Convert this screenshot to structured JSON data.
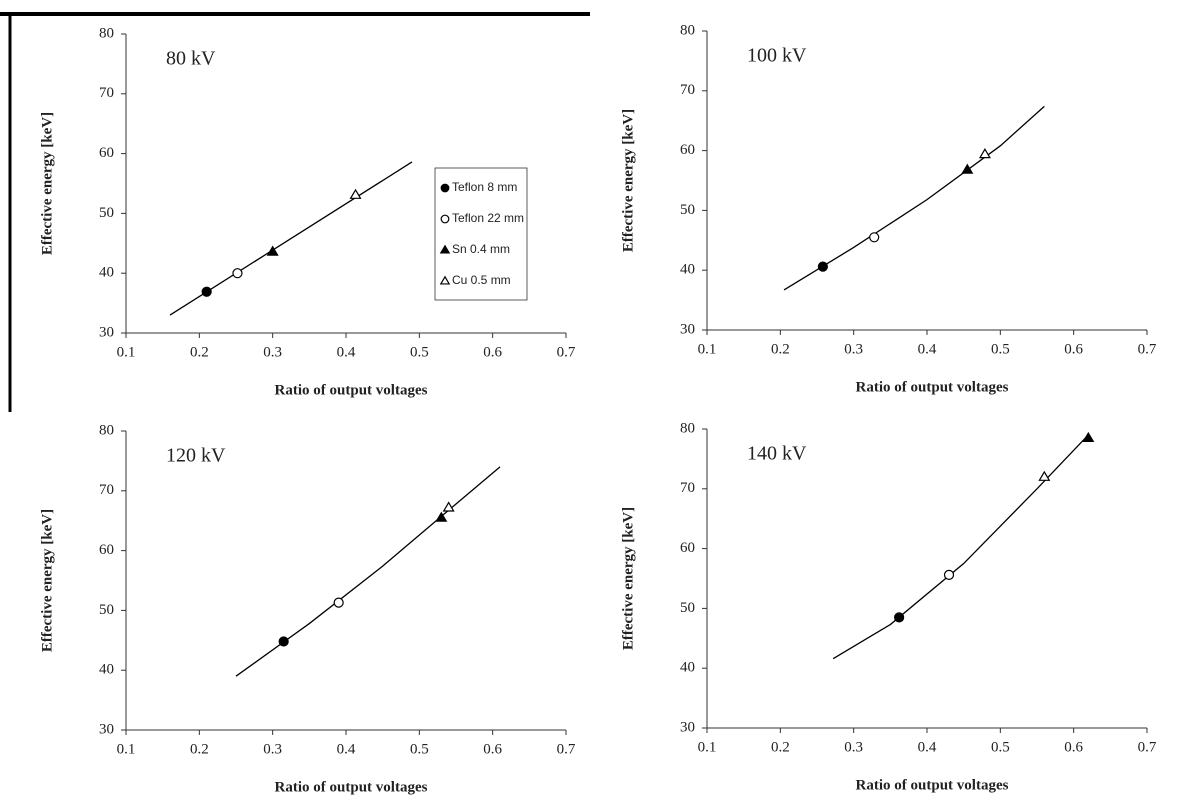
{
  "chart_data": [
    {
      "type": "scatter",
      "annotation": "80 kV",
      "x_label": "Ratio of output voltages",
      "y_label": "Effective energy [keV]",
      "xlim": [
        0.1,
        0.7
      ],
      "xticks": [
        0.1,
        0.2,
        0.3,
        0.4,
        0.5,
        0.6,
        0.7
      ],
      "ylim": [
        30,
        80
      ],
      "yticks": [
        30,
        40,
        50,
        60,
        70,
        80
      ],
      "legend": "right",
      "series": [
        {
          "name": "Teflon 8 mm",
          "marker": "circle",
          "filled": true,
          "color": "#000000",
          "x": [
            0.21
          ],
          "values": [
            36.9
          ]
        },
        {
          "name": "Teflon 22 mm",
          "marker": "circle",
          "filled": false,
          "color": "#000000",
          "x": [
            0.252
          ],
          "values": [
            40
          ]
        },
        {
          "name": "Sn 0.4 mm",
          "marker": "triangle",
          "filled": true,
          "color": "#000000",
          "x": [
            0.3
          ],
          "values": [
            43.6
          ]
        },
        {
          "name": "Cu 0.5 mm",
          "marker": "triangle",
          "filled": false,
          "color": "#000000",
          "x": [
            0.413
          ],
          "values": [
            53.1
          ]
        }
      ],
      "fit": {
        "color": "#000000",
        "x": [
          0.16,
          0.49
        ],
        "values": [
          33,
          58.6
        ]
      }
    },
    {
      "type": "scatter",
      "annotation": "100 kV",
      "x_label": "Ratio of output voltages",
      "y_label": "Effective energy [keV]",
      "xlim": [
        0.1,
        0.7
      ],
      "xticks": [
        0.1,
        0.2,
        0.3,
        0.4,
        0.5,
        0.6,
        0.7
      ],
      "ylim": [
        30,
        80
      ],
      "yticks": [
        30,
        40,
        50,
        60,
        70,
        80
      ],
      "series": [
        {
          "marker": "circle",
          "filled": true,
          "color": "#000000",
          "x": [
            0.258
          ],
          "values": [
            40.6
          ]
        },
        {
          "marker": "circle",
          "filled": false,
          "color": "#000000",
          "x": [
            0.328
          ],
          "values": [
            45.5
          ]
        },
        {
          "marker": "triangle",
          "filled": true,
          "color": "#000000",
          "x": [
            0.455
          ],
          "values": [
            56.8
          ]
        },
        {
          "marker": "triangle",
          "filled": false,
          "color": "#000000",
          "x": [
            0.479
          ],
          "values": [
            59.4
          ]
        }
      ],
      "fit": {
        "color": "#000000",
        "x": [
          0.205,
          0.3,
          0.4,
          0.5,
          0.56
        ],
        "values": [
          36.7,
          43.8,
          51.8,
          60.8,
          67.4
        ]
      }
    },
    {
      "type": "scatter",
      "annotation": "120 kV",
      "x_label": "Ratio of output voltages",
      "y_label": "Effective energy [keV]",
      "xlim": [
        0.1,
        0.7
      ],
      "xticks": [
        0.1,
        0.2,
        0.3,
        0.4,
        0.5,
        0.6,
        0.7
      ],
      "ylim": [
        30,
        80
      ],
      "yticks": [
        30,
        40,
        50,
        60,
        70,
        80
      ],
      "series": [
        {
          "marker": "circle",
          "filled": true,
          "color": "#000000",
          "x": [
            0.315
          ],
          "values": [
            44.8
          ]
        },
        {
          "marker": "circle",
          "filled": false,
          "color": "#000000",
          "x": [
            0.39
          ],
          "values": [
            51.3
          ]
        },
        {
          "marker": "triangle",
          "filled": true,
          "color": "#000000",
          "x": [
            0.53
          ],
          "values": [
            65.5
          ]
        },
        {
          "marker": "triangle",
          "filled": false,
          "color": "#000000",
          "x": [
            0.54
          ],
          "values": [
            67.2
          ]
        }
      ],
      "fit": {
        "color": "#000000",
        "x": [
          0.25,
          0.35,
          0.45,
          0.55,
          0.61
        ],
        "values": [
          39,
          47.8,
          57.4,
          67.8,
          74
        ]
      }
    },
    {
      "type": "scatter",
      "annotation": "140 kV",
      "x_label": "Ratio of output voltages",
      "y_label": "Effective energy [keV]",
      "xlim": [
        0.1,
        0.7
      ],
      "xticks": [
        0.1,
        0.2,
        0.3,
        0.4,
        0.5,
        0.6,
        0.7
      ],
      "ylim": [
        30,
        80
      ],
      "yticks": [
        30,
        40,
        50,
        60,
        70,
        80
      ],
      "series": [
        {
          "marker": "circle",
          "filled": true,
          "color": "#000000",
          "x": [
            0.362
          ],
          "values": [
            48.5
          ]
        },
        {
          "marker": "circle",
          "filled": false,
          "color": "#000000",
          "x": [
            0.43
          ],
          "values": [
            55.6
          ]
        },
        {
          "marker": "triangle",
          "filled": true,
          "color": "#000000",
          "x": [
            0.62
          ],
          "values": [
            78.5
          ]
        },
        {
          "marker": "triangle",
          "filled": false,
          "color": "#000000",
          "x": [
            0.56
          ],
          "values": [
            72
          ]
        }
      ],
      "fit": {
        "color": "#000000",
        "x": [
          0.272,
          0.35,
          0.45,
          0.55,
          0.62
        ],
        "values": [
          41.6,
          47.3,
          57.5,
          70,
          79
        ]
      }
    }
  ]
}
